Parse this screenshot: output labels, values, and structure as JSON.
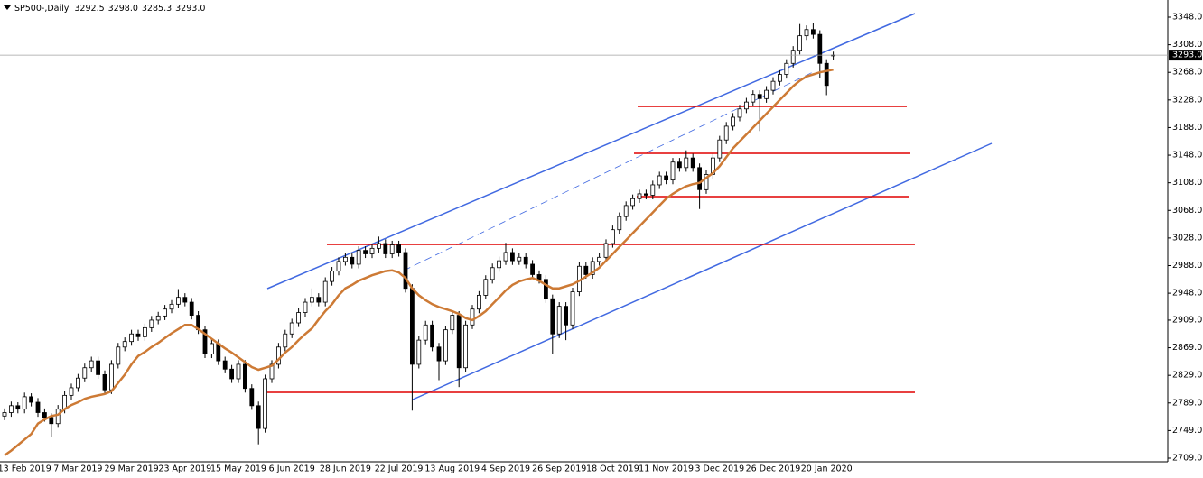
{
  "chart_data": {
    "type": "candlestick",
    "header": {
      "symbol": "SP500-,Daily",
      "ohlc": [
        "3292.5",
        "3298.0",
        "3285.3",
        "3293.0"
      ]
    },
    "last_price": {
      "value": 3293,
      "label": "3293.0"
    },
    "categories": [
      null,
      null,
      null,
      "13 Feb 2019",
      null,
      null,
      null,
      null,
      null,
      null,
      null,
      "7 Mar 2019",
      null,
      null,
      null,
      null,
      null,
      null,
      null,
      "29 Mar 2019",
      null,
      null,
      null,
      null,
      null,
      null,
      null,
      "23 Apr 2019",
      null,
      null,
      null,
      null,
      null,
      null,
      null,
      "15 May 2019",
      null,
      null,
      null,
      null,
      null,
      null,
      null,
      "6 Jun 2019",
      null,
      null,
      null,
      null,
      null,
      null,
      null,
      "28 Jun 2019",
      null,
      null,
      null,
      null,
      null,
      null,
      null,
      "22 Jul 2019",
      null,
      null,
      null,
      null,
      null,
      null,
      null,
      "13 Aug 2019",
      null,
      null,
      null,
      null,
      null,
      null,
      null,
      "4 Sep 2019",
      null,
      null,
      null,
      null,
      null,
      null,
      null,
      "26 Sep 2019",
      null,
      null,
      null,
      null,
      null,
      null,
      null,
      "18 Oct 2019",
      null,
      null,
      null,
      null,
      null,
      null,
      null,
      "11 Nov 2019",
      null,
      null,
      null,
      null,
      null,
      null,
      null,
      "3 Dec 2019",
      null,
      null,
      null,
      null,
      null,
      null,
      null,
      "26 Dec 2019",
      null,
      null,
      null,
      null,
      null,
      null,
      null,
      "20 Jan 2020",
      null
    ],
    "ohlc": [
      [
        2770,
        2781,
        2764,
        2775
      ],
      [
        2775,
        2791,
        2769,
        2785
      ],
      [
        2785,
        2790,
        2774,
        2780
      ],
      [
        2780,
        2804,
        2774,
        2798
      ],
      [
        2798,
        2803,
        2784,
        2790
      ],
      [
        2790,
        2796,
        2769,
        2775
      ],
      [
        2775,
        2781,
        2762,
        2768
      ],
      [
        2768,
        2774,
        2740,
        2759
      ],
      [
        2759,
        2786,
        2753,
        2780
      ],
      [
        2780,
        2806,
        2774,
        2800
      ],
      [
        2800,
        2817,
        2794,
        2811
      ],
      [
        2811,
        2831,
        2805,
        2825
      ],
      [
        2825,
        2846,
        2819,
        2840
      ],
      [
        2840,
        2856,
        2834,
        2850
      ],
      [
        2850,
        2856,
        2824,
        2830
      ],
      [
        2830,
        2836,
        2802,
        2808
      ],
      [
        2808,
        2851,
        2802,
        2845
      ],
      [
        2845,
        2876,
        2839,
        2870
      ],
      [
        2870,
        2884,
        2864,
        2878
      ],
      [
        2878,
        2895,
        2872,
        2889
      ],
      [
        2889,
        2895,
        2879,
        2885
      ],
      [
        2885,
        2904,
        2879,
        2898
      ],
      [
        2898,
        2915,
        2892,
        2909
      ],
      [
        2909,
        2921,
        2903,
        2915
      ],
      [
        2915,
        2931,
        2909,
        2925
      ],
      [
        2925,
        2938,
        2919,
        2932
      ],
      [
        2932,
        2954,
        2926,
        2942
      ],
      [
        2942,
        2948,
        2929,
        2935
      ],
      [
        2935,
        2941,
        2910,
        2916
      ],
      [
        2916,
        2922,
        2889,
        2895
      ],
      [
        2895,
        2901,
        2854,
        2860
      ],
      [
        2860,
        2881,
        2854,
        2875
      ],
      [
        2875,
        2881,
        2844,
        2850
      ],
      [
        2850,
        2856,
        2832,
        2838
      ],
      [
        2838,
        2844,
        2818,
        2824
      ],
      [
        2824,
        2851,
        2818,
        2845
      ],
      [
        2845,
        2851,
        2804,
        2810
      ],
      [
        2810,
        2816,
        2779,
        2785
      ],
      [
        2785,
        2791,
        2729,
        2752
      ],
      [
        2752,
        2830,
        2746,
        2824
      ],
      [
        2824,
        2851,
        2818,
        2845
      ],
      [
        2845,
        2876,
        2839,
        2870
      ],
      [
        2870,
        2895,
        2864,
        2889
      ],
      [
        2889,
        2911,
        2883,
        2905
      ],
      [
        2905,
        2926,
        2899,
        2920
      ],
      [
        2920,
        2941,
        2914,
        2935
      ],
      [
        2935,
        2955,
        2929,
        2942
      ],
      [
        2942,
        2948,
        2929,
        2935
      ],
      [
        2935,
        2971,
        2929,
        2965
      ],
      [
        2965,
        2986,
        2959,
        2980
      ],
      [
        2980,
        3000,
        2974,
        2994
      ],
      [
        2994,
        3006,
        2988,
        3000
      ],
      [
        3000,
        3006,
        2984,
        2990
      ],
      [
        2990,
        3016,
        2984,
        3010
      ],
      [
        3010,
        3016,
        2999,
        3005
      ],
      [
        3005,
        3019,
        2999,
        3013
      ],
      [
        3013,
        3030,
        3007,
        3020
      ],
      [
        3020,
        3026,
        2999,
        3005
      ],
      [
        3005,
        3024,
        2999,
        3018
      ],
      [
        3018,
        3024,
        3001,
        3007
      ],
      [
        3007,
        3013,
        2949,
        2955
      ],
      [
        2955,
        2961,
        2778,
        2845
      ],
      [
        2845,
        2886,
        2839,
        2880
      ],
      [
        2880,
        2908,
        2874,
        2902
      ],
      [
        2902,
        2908,
        2864,
        2870
      ],
      [
        2870,
        2876,
        2822,
        2850
      ],
      [
        2850,
        2901,
        2844,
        2895
      ],
      [
        2895,
        2922,
        2889,
        2916
      ],
      [
        2916,
        2922,
        2812,
        2840
      ],
      [
        2840,
        2908,
        2834,
        2902
      ],
      [
        2902,
        2931,
        2896,
        2925
      ],
      [
        2925,
        2951,
        2919,
        2945
      ],
      [
        2945,
        2974,
        2939,
        2968
      ],
      [
        2968,
        2991,
        2962,
        2985
      ],
      [
        2985,
        3001,
        2979,
        2995
      ],
      [
        2995,
        3021,
        2989,
        3007
      ],
      [
        3007,
        3013,
        2989,
        2995
      ],
      [
        2995,
        3006,
        2989,
        3000
      ],
      [
        3000,
        3006,
        2984,
        2990
      ],
      [
        2990,
        2996,
        2969,
        2975
      ],
      [
        2975,
        2981,
        2962,
        2968
      ],
      [
        2968,
        2974,
        2934,
        2940
      ],
      [
        2940,
        2946,
        2860,
        2889
      ],
      [
        2889,
        2935,
        2883,
        2929
      ],
      [
        2929,
        2935,
        2880,
        2902
      ],
      [
        2902,
        2956,
        2896,
        2950
      ],
      [
        2950,
        2993,
        2944,
        2987
      ],
      [
        2987,
        2993,
        2969,
        2975
      ],
      [
        2975,
        3000,
        2969,
        2994
      ],
      [
        2994,
        3006,
        2988,
        3000
      ],
      [
        3000,
        3026,
        2994,
        3020
      ],
      [
        3020,
        3046,
        3014,
        3040
      ],
      [
        3040,
        3065,
        3034,
        3059
      ],
      [
        3059,
        3081,
        3053,
        3075
      ],
      [
        3075,
        3091,
        3069,
        3085
      ],
      [
        3085,
        3098,
        3079,
        3092
      ],
      [
        3092,
        3098,
        3084,
        3090
      ],
      [
        3090,
        3111,
        3084,
        3105
      ],
      [
        3105,
        3124,
        3099,
        3118
      ],
      [
        3118,
        3124,
        3106,
        3112
      ],
      [
        3112,
        3144,
        3106,
        3138
      ],
      [
        3138,
        3144,
        3124,
        3130
      ],
      [
        3130,
        3155,
        3124,
        3144
      ],
      [
        3144,
        3150,
        3124,
        3130
      ],
      [
        3130,
        3136,
        3070,
        3098
      ],
      [
        3098,
        3126,
        3092,
        3120
      ],
      [
        3120,
        3150,
        3114,
        3144
      ],
      [
        3144,
        3176,
        3138,
        3170
      ],
      [
        3170,
        3196,
        3164,
        3190
      ],
      [
        3190,
        3209,
        3184,
        3203
      ],
      [
        3203,
        3221,
        3197,
        3215
      ],
      [
        3215,
        3231,
        3209,
        3225
      ],
      [
        3225,
        3242,
        3219,
        3236
      ],
      [
        3236,
        3242,
        3183,
        3230
      ],
      [
        3230,
        3248,
        3224,
        3242
      ],
      [
        3242,
        3261,
        3236,
        3255
      ],
      [
        3255,
        3271,
        3249,
        3265
      ],
      [
        3265,
        3287,
        3259,
        3281
      ],
      [
        3281,
        3306,
        3275,
        3300
      ],
      [
        3300,
        3338,
        3294,
        3321
      ],
      [
        3321,
        3336,
        3315,
        3330
      ],
      [
        3330,
        3340,
        3317,
        3323
      ],
      [
        3323,
        3329,
        3260,
        3281
      ],
      [
        3281,
        3287,
        3235,
        3249
      ],
      [
        3292.5,
        3298,
        3285.3,
        3293
      ]
    ],
    "ma": {
      "color": "#cd7a35",
      "values": [
        2713,
        2720,
        2728,
        2736,
        2744,
        2759,
        2765,
        2770,
        2772,
        2780,
        2786,
        2790,
        2795,
        2798,
        2800,
        2802,
        2806,
        2818,
        2830,
        2845,
        2857,
        2863,
        2870,
        2876,
        2883,
        2890,
        2896,
        2902,
        2902,
        2896,
        2889,
        2882,
        2875,
        2868,
        2862,
        2855,
        2848,
        2841,
        2837,
        2840,
        2843,
        2852,
        2862,
        2870,
        2880,
        2889,
        2897,
        2910,
        2922,
        2932,
        2945,
        2955,
        2960,
        2966,
        2970,
        2974,
        2977,
        2980,
        2981,
        2978,
        2970,
        2955,
        2945,
        2938,
        2932,
        2928,
        2925,
        2922,
        2918,
        2912,
        2909,
        2915,
        2922,
        2932,
        2942,
        2952,
        2960,
        2965,
        2968,
        2970,
        2966,
        2960,
        2955,
        2955,
        2958,
        2961,
        2966,
        2972,
        2978,
        2985,
        2995,
        3005,
        3015,
        3025,
        3035,
        3045,
        3055,
        3065,
        3075,
        3085,
        3092,
        3098,
        3103,
        3106,
        3108,
        3115,
        3122,
        3132,
        3145,
        3158,
        3168,
        3178,
        3188,
        3198,
        3208,
        3218,
        3228,
        3238,
        3248,
        3256,
        3262,
        3265,
        3268,
        3270,
        3272
      ]
    },
    "ylim": [
      2709,
      3348
    ],
    "yticks": [
      {
        "value": 3348,
        "label": "3348.0"
      },
      {
        "value": 3308,
        "label": "3308.0"
      },
      {
        "value": 3268,
        "label": "3268.0"
      },
      {
        "value": 3228,
        "label": "3228.0"
      },
      {
        "value": 3188,
        "label": "3188.0"
      },
      {
        "value": 3148,
        "label": "3148.0"
      },
      {
        "value": 3108,
        "label": "3108.0"
      },
      {
        "value": 3068,
        "label": "3068.0"
      },
      {
        "value": 3028,
        "label": "3028.0"
      },
      {
        "value": 2988,
        "label": "2988.0"
      },
      {
        "value": 2948,
        "label": "2948.0"
      },
      {
        "value": 2909,
        "label": "2909.0"
      },
      {
        "value": 2869,
        "label": "2869.0"
      },
      {
        "value": 2829,
        "label": "2829.0"
      },
      {
        "value": 2789,
        "label": "2789.0"
      },
      {
        "value": 2749,
        "label": "2749.0"
      },
      {
        "value": 2709,
        "label": "2709.0"
      }
    ],
    "grid": false
  }
}
